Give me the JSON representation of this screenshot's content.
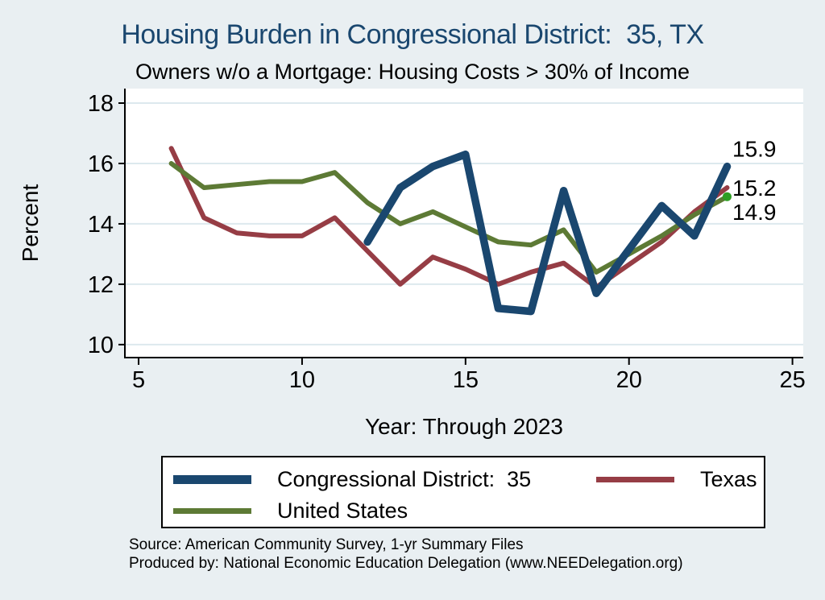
{
  "page": {
    "background_color": "#e9eff2",
    "plot_background_color": "#ffffff",
    "gridline_color": "#dde9ee",
    "axis_color": "#000000"
  },
  "chart_data": {
    "type": "line",
    "title": "Housing Burden in Congressional District:  35, TX",
    "subtitle": "Owners w/o a Mortgage: Housing Costs > 30% of Income",
    "xlabel": "Year: Through 2023",
    "ylabel": "Percent",
    "title_color": "#1a476f",
    "x_ticks": [
      5,
      10,
      15,
      20,
      25
    ],
    "y_ticks": [
      10,
      12,
      14,
      16,
      18
    ],
    "x_range": [
      4.58,
      25.33
    ],
    "y_range": [
      9.57,
      18.48
    ],
    "grid": "horizontal",
    "legend_position": "bottom",
    "series": [
      {
        "name": "Congressional District:  35",
        "color": "#1a476f",
        "width": 9.5,
        "end_label": "15.9",
        "end_label_dy": -22,
        "points": [
          [
            12,
            13.4
          ],
          [
            13,
            15.2
          ],
          [
            14,
            15.9
          ],
          [
            15,
            16.3
          ],
          [
            16,
            11.2
          ],
          [
            17,
            11.1
          ],
          [
            18,
            15.1
          ],
          [
            19,
            11.7
          ],
          [
            21,
            14.6
          ],
          [
            22,
            13.6
          ],
          [
            23,
            15.9
          ]
        ]
      },
      {
        "name": "Texas",
        "color": "#963d45",
        "width": 6,
        "end_label": "15.2",
        "end_label_dy": 0,
        "points": [
          [
            6,
            16.5
          ],
          [
            7,
            14.2
          ],
          [
            8,
            13.7
          ],
          [
            9,
            13.6
          ],
          [
            10,
            13.6
          ],
          [
            11,
            14.2
          ],
          [
            12,
            13.1
          ],
          [
            13,
            12.0
          ],
          [
            14,
            12.9
          ],
          [
            15,
            12.5
          ],
          [
            16,
            12.0
          ],
          [
            17,
            12.4
          ],
          [
            18,
            12.7
          ],
          [
            19,
            11.9
          ],
          [
            21,
            13.4
          ],
          [
            22,
            14.4
          ],
          [
            23,
            15.2
          ]
        ]
      },
      {
        "name": "United States",
        "color": "#5d7a35",
        "width": 6,
        "end_label": "14.9",
        "end_label_dy": 19,
        "end_marker_color": "#2f9e23",
        "points": [
          [
            6,
            16.0
          ],
          [
            7,
            15.2
          ],
          [
            8,
            15.3
          ],
          [
            9,
            15.4
          ],
          [
            10,
            15.4
          ],
          [
            11,
            15.7
          ],
          [
            12,
            14.7
          ],
          [
            13,
            14.0
          ],
          [
            14,
            14.4
          ],
          [
            15,
            13.9
          ],
          [
            16,
            13.4
          ],
          [
            17,
            13.3
          ],
          [
            18,
            13.8
          ],
          [
            19,
            12.4
          ],
          [
            21,
            13.6
          ],
          [
            22,
            14.3
          ],
          [
            23,
            14.9
          ]
        ]
      }
    ],
    "z_order": [
      1,
      2,
      0
    ]
  },
  "legend": {
    "entries": [
      {
        "label": "Congressional District:  35",
        "color": "#1a476f",
        "swatch_height": 11
      },
      {
        "label": "Texas",
        "color": "#963d45",
        "swatch_height": 7
      },
      {
        "label": "United States",
        "color": "#5d7a35",
        "swatch_height": 7
      }
    ]
  },
  "footer": {
    "line1": "Source: American Community Survey, 1-yr Summary Files",
    "line2": "Produced by: National Economic Education Delegation (www.NEEDelegation.org)"
  }
}
